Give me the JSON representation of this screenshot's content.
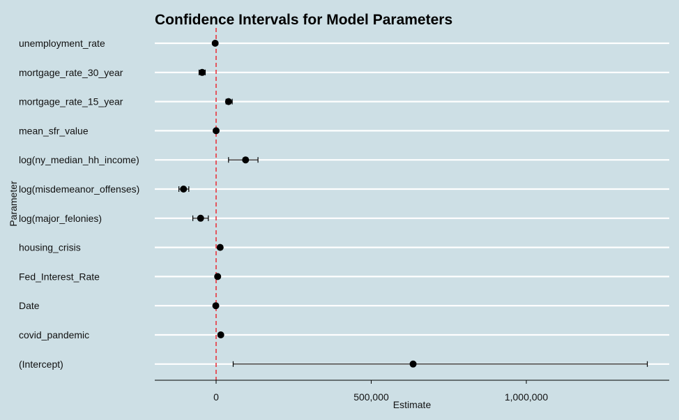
{
  "chart_data": {
    "type": "scatter",
    "subtype": "forest-plot-with-error-bars",
    "title": "Confidence Intervals for Model Parameters",
    "xlabel": "Estimate",
    "ylabel": "Parameter",
    "xlim": [
      -200000,
      1460000
    ],
    "x_ticks": [
      0,
      500000,
      1000000
    ],
    "x_tick_labels": [
      "0",
      "500,000",
      "1,000,000"
    ],
    "reference_line": {
      "x": 0,
      "style": "dashed",
      "color": "#e8343d"
    },
    "grid": "horizontal",
    "colors": {
      "background": "#cddfe5",
      "grid": "#ffffff",
      "point": "#000000"
    },
    "categories": [
      "unemployment_rate",
      "mortgage_rate_30_year",
      "mortgage_rate_15_year",
      "mean_sfr_value",
      "log(ny_median_hh_income)",
      "log(misdemeanor_offenses)",
      "log(major_felonies)",
      "housing_crisis",
      "Fed_Interest_Rate",
      "Date",
      "covid_pandemic",
      "(Intercept)"
    ],
    "estimates": [
      -3000,
      -45000,
      40000,
      0,
      95000,
      -105000,
      -50000,
      13000,
      5000,
      -1000,
      15000,
      635000
    ],
    "lower": [
      -5000,
      -55000,
      32000,
      -1000,
      40000,
      -120000,
      -75000,
      11000,
      3000,
      -2000,
      13000,
      55000
    ],
    "upper": [
      -1000,
      -35000,
      52000,
      1000,
      135000,
      -88000,
      -25000,
      15000,
      7000,
      0,
      17000,
      1390000
    ]
  }
}
